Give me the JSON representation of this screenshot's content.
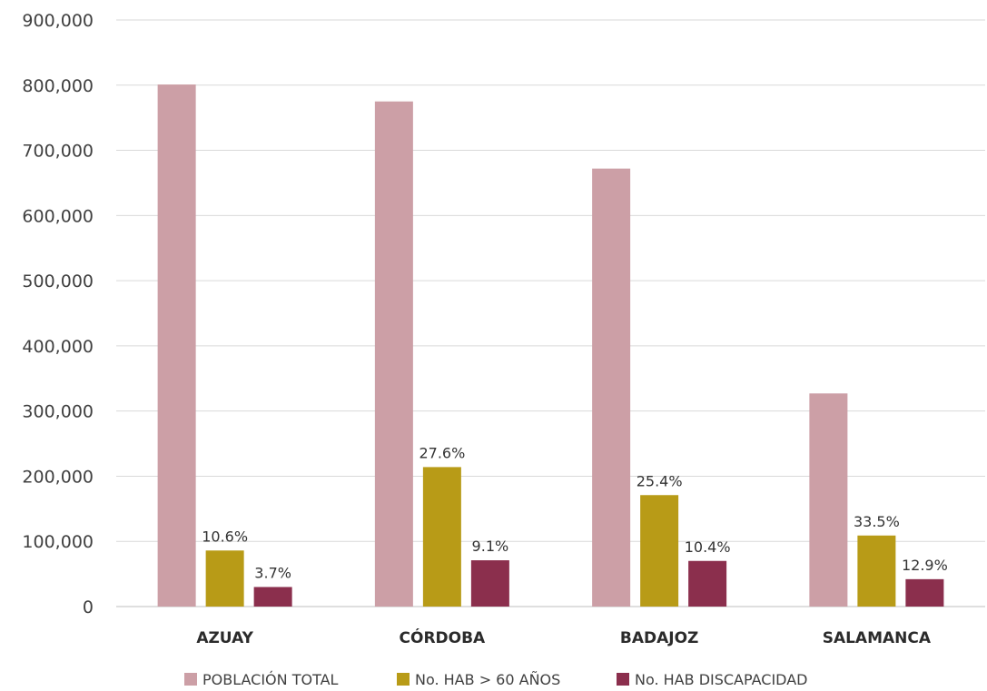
{
  "chart_data": {
    "type": "bar",
    "title": "",
    "xlabel": "",
    "ylabel": "",
    "ylim": [
      0,
      900000
    ],
    "yticks": [
      0,
      100000,
      200000,
      300000,
      400000,
      500000,
      600000,
      700000,
      800000,
      900000
    ],
    "ytick_labels": [
      "0",
      "100,000",
      "200,000",
      "300,000",
      "400,000",
      "500,000",
      "600,000",
      "700,000",
      "800,000",
      "900,000"
    ],
    "grid": true,
    "legend_position": "bottom",
    "categories": [
      "AZUAY",
      "CÓRDOBA",
      "BADAJOZ",
      "SALAMANCA"
    ],
    "series": [
      {
        "name": "POBLACIÓN TOTAL",
        "color": "#cc9fa6",
        "values": [
          801000,
          775000,
          672000,
          327000
        ],
        "labels": [
          "",
          "",
          "",
          ""
        ]
      },
      {
        "name": "No. HAB > 60 AÑOS",
        "color": "#b89b17",
        "values": [
          86000,
          214000,
          171000,
          109000
        ],
        "labels": [
          "10.6%",
          "27.6%",
          "25.4%",
          "33.5%"
        ]
      },
      {
        "name": "No. HAB DISCAPACIDAD",
        "color": "#8b2f4d",
        "values": [
          30000,
          71000,
          70000,
          42000
        ],
        "labels": [
          "3.7%",
          "9.1%",
          "10.4%",
          "12.9%"
        ]
      }
    ]
  }
}
